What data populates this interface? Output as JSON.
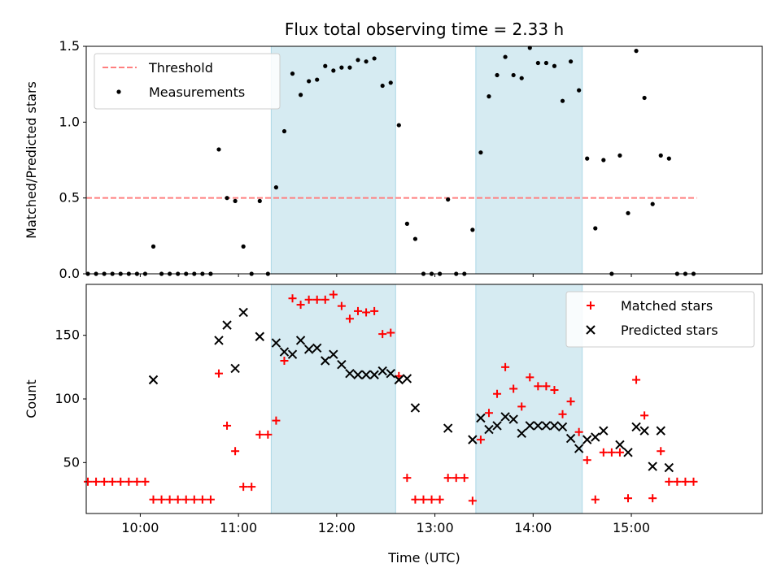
{
  "chart_data": [
    {
      "type": "scatter",
      "title": "Flux total observing time = 2.33 h",
      "xlabel": "",
      "ylabel": "Matched/Predicted stars",
      "xlim": [
        "09:27",
        "16:20"
      ],
      "ylim": [
        0,
        1.5
      ],
      "yticks": [
        0.0,
        0.5,
        1.0,
        1.5
      ],
      "ytick_labels": [
        "0.0",
        "0.5",
        "1.0",
        "1.5"
      ],
      "xticks": [
        "10:00",
        "11:00",
        "12:00",
        "13:00",
        "14:00",
        "15:00"
      ],
      "shaded_intervals": [
        [
          "11:20",
          "12:36"
        ],
        [
          "13:25",
          "14:30"
        ]
      ],
      "legend_position": "upper-left",
      "series": [
        {
          "name": "Threshold",
          "kind": "line",
          "style": "dashed",
          "color": "#ff7f7f",
          "x": [
            "09:27",
            "15:40"
          ],
          "y": [
            0.5,
            0.5
          ]
        },
        {
          "name": "Measurements",
          "kind": "scatter",
          "marker": "dot",
          "color": "#000000",
          "x": [
            "09:28",
            "09:33",
            "09:38",
            "09:43",
            "09:48",
            "09:53",
            "09:58",
            "10:03",
            "10:08",
            "10:13",
            "10:18",
            "10:23",
            "10:28",
            "10:33",
            "10:38",
            "10:43",
            "10:48",
            "10:53",
            "10:58",
            "11:03",
            "11:08",
            "11:13",
            "11:18",
            "11:23",
            "11:28",
            "11:33",
            "11:38",
            "11:43",
            "11:48",
            "11:53",
            "11:58",
            "12:03",
            "12:08",
            "12:13",
            "12:18",
            "12:23",
            "12:28",
            "12:33",
            "12:38",
            "12:43",
            "12:48",
            "12:53",
            "12:58",
            "13:03",
            "13:08",
            "13:13",
            "13:18",
            "13:23",
            "13:28",
            "13:33",
            "13:38",
            "13:43",
            "13:48",
            "13:53",
            "13:58",
            "14:03",
            "14:08",
            "14:13",
            "14:18",
            "14:23",
            "14:28",
            "14:33",
            "14:38",
            "14:43",
            "14:48",
            "14:53",
            "14:58",
            "15:03",
            "15:08",
            "15:13",
            "15:18",
            "15:23",
            "15:28",
            "15:33",
            "15:38"
          ],
          "y": [
            0.0,
            0.0,
            0.0,
            0.0,
            0.0,
            0.0,
            0.0,
            0.0,
            0.18,
            0.0,
            0.0,
            0.0,
            0.0,
            0.0,
            0.0,
            0.0,
            0.82,
            0.5,
            0.48,
            0.18,
            0.0,
            0.48,
            0.0,
            0.57,
            0.94,
            1.32,
            1.18,
            1.27,
            1.28,
            1.37,
            1.34,
            1.36,
            1.36,
            1.41,
            1.4,
            1.42,
            1.24,
            1.26,
            0.98,
            0.33,
            0.23,
            0.0,
            0.0,
            0.0,
            0.49,
            0.0,
            0.0,
            0.29,
            0.8,
            1.17,
            1.31,
            1.43,
            1.31,
            1.29,
            1.49,
            1.39,
            1.39,
            1.37,
            1.14,
            1.4,
            1.21,
            0.76,
            0.3,
            0.75,
            0.0,
            0.78,
            0.4,
            1.47,
            1.16,
            0.46,
            0.78,
            0.76,
            0.0,
            0.0,
            0.0
          ]
        }
      ]
    },
    {
      "type": "scatter",
      "title": "",
      "xlabel": "Time (UTC)",
      "ylabel": "Count",
      "xlim": [
        "09:27",
        "16:20"
      ],
      "ylim": [
        10,
        190
      ],
      "yticks": [
        50,
        100,
        150
      ],
      "ytick_labels": [
        "50",
        "100",
        "150"
      ],
      "xticks": [
        "10:00",
        "11:00",
        "12:00",
        "13:00",
        "14:00",
        "15:00"
      ],
      "xtick_labels": [
        "10:00",
        "11:00",
        "12:00",
        "13:00",
        "14:00",
        "15:00"
      ],
      "shaded_intervals": [
        [
          "11:20",
          "12:36"
        ],
        [
          "13:25",
          "14:30"
        ]
      ],
      "legend_position": "upper-right",
      "series": [
        {
          "name": "Matched stars",
          "kind": "scatter",
          "marker": "plus",
          "color": "#ff0000",
          "x": [
            "09:28",
            "09:33",
            "09:38",
            "09:43",
            "09:48",
            "09:53",
            "09:58",
            "10:03",
            "10:08",
            "10:13",
            "10:18",
            "10:23",
            "10:28",
            "10:33",
            "10:38",
            "10:43",
            "10:48",
            "10:53",
            "10:58",
            "11:03",
            "11:08",
            "11:13",
            "11:18",
            "11:23",
            "11:28",
            "11:33",
            "11:38",
            "11:43",
            "11:48",
            "11:53",
            "11:58",
            "12:03",
            "12:08",
            "12:13",
            "12:18",
            "12:23",
            "12:28",
            "12:33",
            "12:38",
            "12:43",
            "12:48",
            "12:53",
            "12:58",
            "13:03",
            "13:08",
            "13:13",
            "13:18",
            "13:23",
            "13:28",
            "13:33",
            "13:38",
            "13:43",
            "13:48",
            "13:53",
            "13:58",
            "14:03",
            "14:08",
            "14:13",
            "14:18",
            "14:23",
            "14:28",
            "14:33",
            "14:38",
            "14:43",
            "14:48",
            "14:53",
            "14:58",
            "15:03",
            "15:08",
            "15:13",
            "15:18",
            "15:23",
            "15:28",
            "15:33",
            "15:38"
          ],
          "y": [
            35,
            35,
            35,
            35,
            35,
            35,
            35,
            35,
            21,
            21,
            21,
            21,
            21,
            21,
            21,
            21,
            120,
            79,
            59,
            31,
            31,
            72,
            72,
            83,
            130,
            179,
            174,
            178,
            178,
            178,
            182,
            173,
            163,
            169,
            168,
            169,
            151,
            152,
            118,
            38,
            21,
            21,
            21,
            21,
            38,
            38,
            38,
            20,
            68,
            89,
            104,
            125,
            108,
            94,
            117,
            110,
            110,
            107,
            88,
            98,
            74,
            52,
            21,
            58,
            58,
            58,
            22,
            115,
            87,
            22,
            59,
            35,
            35,
            35,
            35
          ]
        },
        {
          "name": "Predicted stars",
          "kind": "scatter",
          "marker": "x",
          "color": "#000000",
          "x": [
            "10:08",
            "10:48",
            "10:53",
            "10:58",
            "11:03",
            "11:13",
            "11:23",
            "11:28",
            "11:33",
            "11:38",
            "11:43",
            "11:48",
            "11:53",
            "11:58",
            "12:03",
            "12:08",
            "12:13",
            "12:18",
            "12:23",
            "12:28",
            "12:33",
            "12:38",
            "12:43",
            "12:48",
            "13:08",
            "13:23",
            "13:28",
            "13:33",
            "13:38",
            "13:43",
            "13:48",
            "13:53",
            "13:58",
            "14:03",
            "14:08",
            "14:13",
            "14:18",
            "14:23",
            "14:28",
            "14:33",
            "14:38",
            "14:43",
            "14:53",
            "14:58",
            "15:03",
            "15:08",
            "15:13",
            "15:18",
            "15:23"
          ],
          "y": [
            115,
            146,
            158,
            124,
            168,
            149,
            144,
            137,
            135,
            146,
            139,
            140,
            130,
            135,
            127,
            120,
            119,
            119,
            119,
            122,
            120,
            115,
            116,
            93,
            77,
            68,
            85,
            76,
            79,
            86,
            84,
            73,
            79,
            79,
            79,
            79,
            78,
            69,
            61,
            68,
            70,
            75,
            64,
            58,
            78,
            75,
            47,
            75,
            46
          ]
        }
      ]
    }
  ]
}
